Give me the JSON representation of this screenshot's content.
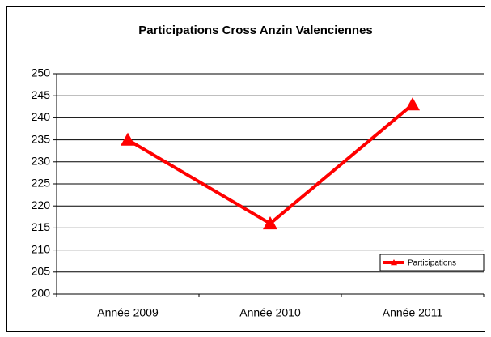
{
  "chart_data": {
    "type": "line",
    "title": "Participations Cross Anzin Valenciennes",
    "categories": [
      "Année 2009",
      "Année 2010",
      "Année 2011"
    ],
    "series": [
      {
        "name": "Participations",
        "color": "#ff0000",
        "values": [
          235,
          216,
          243
        ]
      }
    ],
    "ylim": [
      200,
      250
    ],
    "yticks": [
      200,
      205,
      210,
      215,
      220,
      225,
      230,
      235,
      240,
      245,
      250
    ],
    "grid": true,
    "legend": "lower right"
  }
}
